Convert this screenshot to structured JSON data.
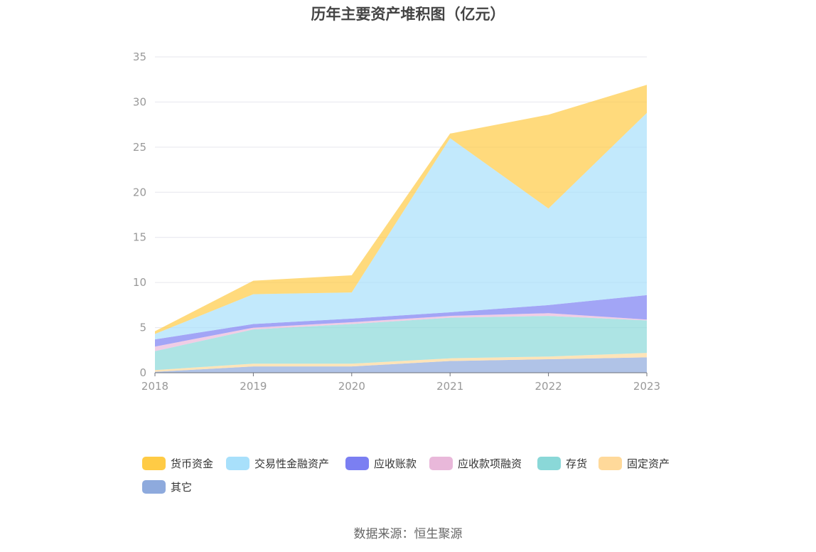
{
  "chart_data": {
    "type": "area",
    "stacked": true,
    "title": "历年主要资产堆积图（亿元）",
    "x": [
      "2018",
      "2019",
      "2020",
      "2021",
      "2022",
      "2023"
    ],
    "ylim": [
      0,
      35
    ],
    "yticks": [
      0,
      5,
      10,
      15,
      20,
      25,
      30,
      35
    ],
    "grid": true,
    "legend_position": "bottom",
    "series": [
      {
        "name": "其它",
        "color": "#8eaadd",
        "values": [
          0.1,
          0.7,
          0.7,
          1.3,
          1.5,
          1.7
        ]
      },
      {
        "name": "固定资产",
        "color": "#ffd99a",
        "values": [
          0.2,
          0.3,
          0.3,
          0.3,
          0.3,
          0.5
        ]
      },
      {
        "name": "存货",
        "color": "#8ad8d8",
        "values": [
          2.1,
          3.8,
          4.4,
          4.5,
          4.5,
          3.6
        ]
      },
      {
        "name": "应收款项融资",
        "color": "#e9b8da",
        "values": [
          0.5,
          0.2,
          0.2,
          0.2,
          0.3,
          0.1
        ]
      },
      {
        "name": "应收账款",
        "color": "#7b7ff2",
        "values": [
          0.8,
          0.4,
          0.4,
          0.4,
          0.9,
          2.7
        ]
      },
      {
        "name": "交易性金融资产",
        "color": "#a8e0fb",
        "values": [
          0.6,
          3.3,
          2.9,
          19.3,
          10.7,
          20.2
        ]
      },
      {
        "name": "货币资金",
        "color": "#ffcb45",
        "values": [
          0.3,
          1.5,
          1.9,
          0.5,
          10.4,
          3.1
        ]
      }
    ]
  },
  "legend_order": [
    "货币资金",
    "交易性金融资产",
    "应收账款",
    "应收款项融资",
    "存货",
    "固定资产",
    "其它"
  ],
  "source": "数据来源：恒生聚源"
}
